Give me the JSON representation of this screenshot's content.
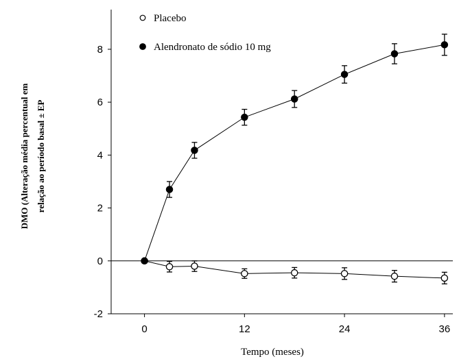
{
  "chart_data": {
    "type": "line",
    "xlabel": "Tempo (meses)",
    "ylabel_lines": [
      "DMO (Alteração média percentual em",
      "relação ao período basal ± EP"
    ],
    "x_ticks": [
      0,
      12,
      24,
      36
    ],
    "y_ticks": [
      -2,
      0,
      2,
      4,
      6,
      8
    ],
    "xlim": [
      -4,
      37
    ],
    "ylim": [
      -2,
      9.5
    ],
    "reference_line_y": 0,
    "series": [
      {
        "name": "Placebo",
        "marker": "open-circle",
        "color": "#000000",
        "x": [
          0,
          3,
          6,
          12,
          18,
          24,
          30,
          36
        ],
        "y": [
          0,
          -0.22,
          -0.2,
          -0.48,
          -0.45,
          -0.48,
          -0.58,
          -0.65
        ],
        "err": [
          0,
          0.2,
          0.2,
          0.18,
          0.2,
          0.22,
          0.22,
          0.22
        ]
      },
      {
        "name": "Alendronato de sódio 10 mg",
        "marker": "filled-circle",
        "color": "#000000",
        "x": [
          0,
          3,
          6,
          12,
          18,
          24,
          30,
          36
        ],
        "y": [
          0,
          2.7,
          4.18,
          5.43,
          6.12,
          7.05,
          7.83,
          8.17
        ],
        "err": [
          0,
          0.3,
          0.3,
          0.3,
          0.32,
          0.33,
          0.38,
          0.4
        ]
      }
    ],
    "legend_position": "top-left"
  }
}
